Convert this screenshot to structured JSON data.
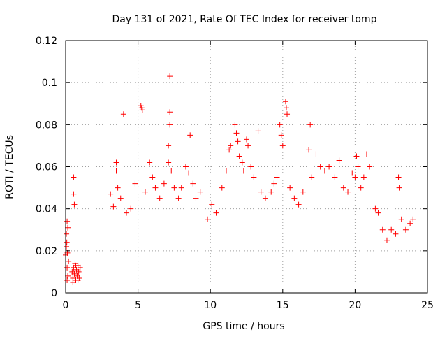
{
  "chart_data": {
    "type": "scatter",
    "title": "Day 131 of 2021, Rate Of TEC Index for receiver tomp",
    "xlabel": "GPS time / hours",
    "ylabel": "ROTI / TECUs",
    "xlim": [
      0,
      25
    ],
    "ylim": [
      0,
      0.12
    ],
    "grid": true,
    "marker": "+",
    "color": "#ff0000",
    "xticks": [
      {
        "value": 0,
        "label": "0"
      },
      {
        "value": 5,
        "label": "5"
      },
      {
        "value": 10,
        "label": "10"
      },
      {
        "value": 15,
        "label": "15"
      },
      {
        "value": 20,
        "label": "20"
      },
      {
        "value": 25,
        "label": "25"
      }
    ],
    "yticks": [
      {
        "value": 0,
        "label": "0"
      },
      {
        "value": 0.02,
        "label": "0.02"
      },
      {
        "value": 0.04,
        "label": "0.04"
      },
      {
        "value": 0.06,
        "label": "0.06"
      },
      {
        "value": 0.08,
        "label": "0.08"
      },
      {
        "value": 0.1,
        "label": "0.1"
      },
      {
        "value": 0.12,
        "label": "0.12"
      }
    ],
    "series": [
      {
        "points": [
          [
            0.0,
            0.018
          ],
          [
            0.05,
            0.028
          ],
          [
            0.1,
            0.034
          ],
          [
            0.05,
            0.022
          ],
          [
            0.1,
            0.012
          ],
          [
            0.15,
            0.008
          ],
          [
            0.1,
            0.006
          ],
          [
            0.2,
            0.015
          ],
          [
            0.08,
            0.024
          ],
          [
            0.12,
            0.019
          ],
          [
            0.15,
            0.031
          ],
          [
            0.55,
            0.055
          ],
          [
            0.55,
            0.047
          ],
          [
            0.6,
            0.042
          ],
          [
            0.45,
            0.01
          ],
          [
            0.5,
            0.007
          ],
          [
            0.55,
            0.012
          ],
          [
            0.6,
            0.009
          ],
          [
            0.65,
            0.014
          ],
          [
            0.7,
            0.006
          ],
          [
            0.75,
            0.011
          ],
          [
            0.8,
            0.008
          ],
          [
            0.85,
            0.013
          ],
          [
            0.9,
            0.01
          ],
          [
            0.95,
            0.007
          ],
          [
            1.0,
            0.012
          ],
          [
            0.5,
            0.005
          ],
          [
            0.7,
            0.013
          ],
          [
            0.85,
            0.006
          ],
          [
            3.1,
            0.047
          ],
          [
            3.3,
            0.041
          ],
          [
            3.5,
            0.062
          ],
          [
            3.5,
            0.058
          ],
          [
            3.6,
            0.05
          ],
          [
            3.8,
            0.045
          ],
          [
            4.0,
            0.085
          ],
          [
            4.2,
            0.038
          ],
          [
            4.5,
            0.04
          ],
          [
            4.8,
            0.052
          ],
          [
            5.2,
            0.089
          ],
          [
            5.25,
            0.088
          ],
          [
            5.3,
            0.087
          ],
          [
            5.5,
            0.048
          ],
          [
            5.8,
            0.062
          ],
          [
            6.0,
            0.055
          ],
          [
            6.2,
            0.05
          ],
          [
            6.5,
            0.045
          ],
          [
            6.8,
            0.052
          ],
          [
            7.2,
            0.103
          ],
          [
            7.2,
            0.086
          ],
          [
            7.2,
            0.08
          ],
          [
            7.1,
            0.07
          ],
          [
            7.1,
            0.062
          ],
          [
            7.3,
            0.058
          ],
          [
            7.5,
            0.05
          ],
          [
            7.8,
            0.045
          ],
          [
            8.0,
            0.05
          ],
          [
            8.3,
            0.06
          ],
          [
            8.5,
            0.057
          ],
          [
            8.6,
            0.075
          ],
          [
            8.8,
            0.052
          ],
          [
            9.0,
            0.045
          ],
          [
            9.3,
            0.048
          ],
          [
            9.8,
            0.035
          ],
          [
            10.1,
            0.042
          ],
          [
            10.4,
            0.038
          ],
          [
            10.8,
            0.05
          ],
          [
            11.1,
            0.058
          ],
          [
            11.3,
            0.068
          ],
          [
            11.4,
            0.07
          ],
          [
            11.7,
            0.08
          ],
          [
            11.8,
            0.076
          ],
          [
            11.9,
            0.072
          ],
          [
            12.0,
            0.065
          ],
          [
            12.2,
            0.062
          ],
          [
            12.3,
            0.058
          ],
          [
            12.5,
            0.073
          ],
          [
            12.6,
            0.07
          ],
          [
            12.8,
            0.06
          ],
          [
            13.0,
            0.055
          ],
          [
            13.3,
            0.077
          ],
          [
            13.5,
            0.048
          ],
          [
            13.8,
            0.045
          ],
          [
            14.2,
            0.048
          ],
          [
            14.4,
            0.052
          ],
          [
            14.6,
            0.055
          ],
          [
            14.8,
            0.08
          ],
          [
            14.9,
            0.075
          ],
          [
            15.0,
            0.07
          ],
          [
            15.2,
            0.091
          ],
          [
            15.25,
            0.088
          ],
          [
            15.3,
            0.085
          ],
          [
            15.5,
            0.05
          ],
          [
            15.8,
            0.045
          ],
          [
            16.1,
            0.042
          ],
          [
            16.4,
            0.048
          ],
          [
            16.8,
            0.068
          ],
          [
            16.9,
            0.08
          ],
          [
            17.0,
            0.055
          ],
          [
            17.3,
            0.066
          ],
          [
            17.6,
            0.06
          ],
          [
            17.9,
            0.058
          ],
          [
            18.2,
            0.06
          ],
          [
            18.6,
            0.055
          ],
          [
            18.9,
            0.063
          ],
          [
            19.2,
            0.05
          ],
          [
            19.5,
            0.048
          ],
          [
            19.8,
            0.057
          ],
          [
            20.0,
            0.055
          ],
          [
            20.1,
            0.065
          ],
          [
            20.2,
            0.06
          ],
          [
            20.4,
            0.05
          ],
          [
            20.6,
            0.055
          ],
          [
            20.8,
            0.066
          ],
          [
            21.0,
            0.06
          ],
          [
            21.4,
            0.04
          ],
          [
            21.6,
            0.038
          ],
          [
            21.9,
            0.03
          ],
          [
            22.2,
            0.025
          ],
          [
            22.5,
            0.03
          ],
          [
            22.8,
            0.028
          ],
          [
            23.0,
            0.055
          ],
          [
            23.05,
            0.05
          ],
          [
            23.2,
            0.035
          ],
          [
            23.5,
            0.03
          ],
          [
            23.8,
            0.033
          ],
          [
            24.0,
            0.035
          ]
        ]
      }
    ]
  }
}
